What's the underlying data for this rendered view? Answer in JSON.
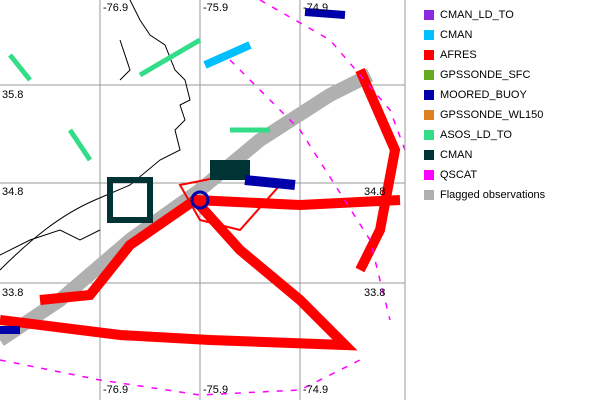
{
  "map": {
    "lon_labels": [
      "-76.9",
      "-75.9",
      "-74.9"
    ],
    "lat_labels": [
      "35.8",
      "34.8",
      "33.8"
    ],
    "legend": [
      {
        "name": "CMAN_LD_TO",
        "color": "#8a2be2"
      },
      {
        "name": "CMAN",
        "color": "#00bfff"
      },
      {
        "name": "AFRES",
        "color": "#ff0000"
      },
      {
        "name": "GPSSONDE_SFC",
        "color": "#66aa22"
      },
      {
        "name": "MOORED_BUOY",
        "color": "#0000aa"
      },
      {
        "name": "GPSSONDE_WL150",
        "color": "#dd8022"
      },
      {
        "name": "ASOS_LD_TO",
        "color": "#33dd88"
      },
      {
        "name": "CMAN",
        "color": "#003333"
      },
      {
        "name": "QSCAT",
        "color": "#ff00ff"
      },
      {
        "name": "Flagged observations",
        "color": "#b0b0b0"
      }
    ]
  }
}
